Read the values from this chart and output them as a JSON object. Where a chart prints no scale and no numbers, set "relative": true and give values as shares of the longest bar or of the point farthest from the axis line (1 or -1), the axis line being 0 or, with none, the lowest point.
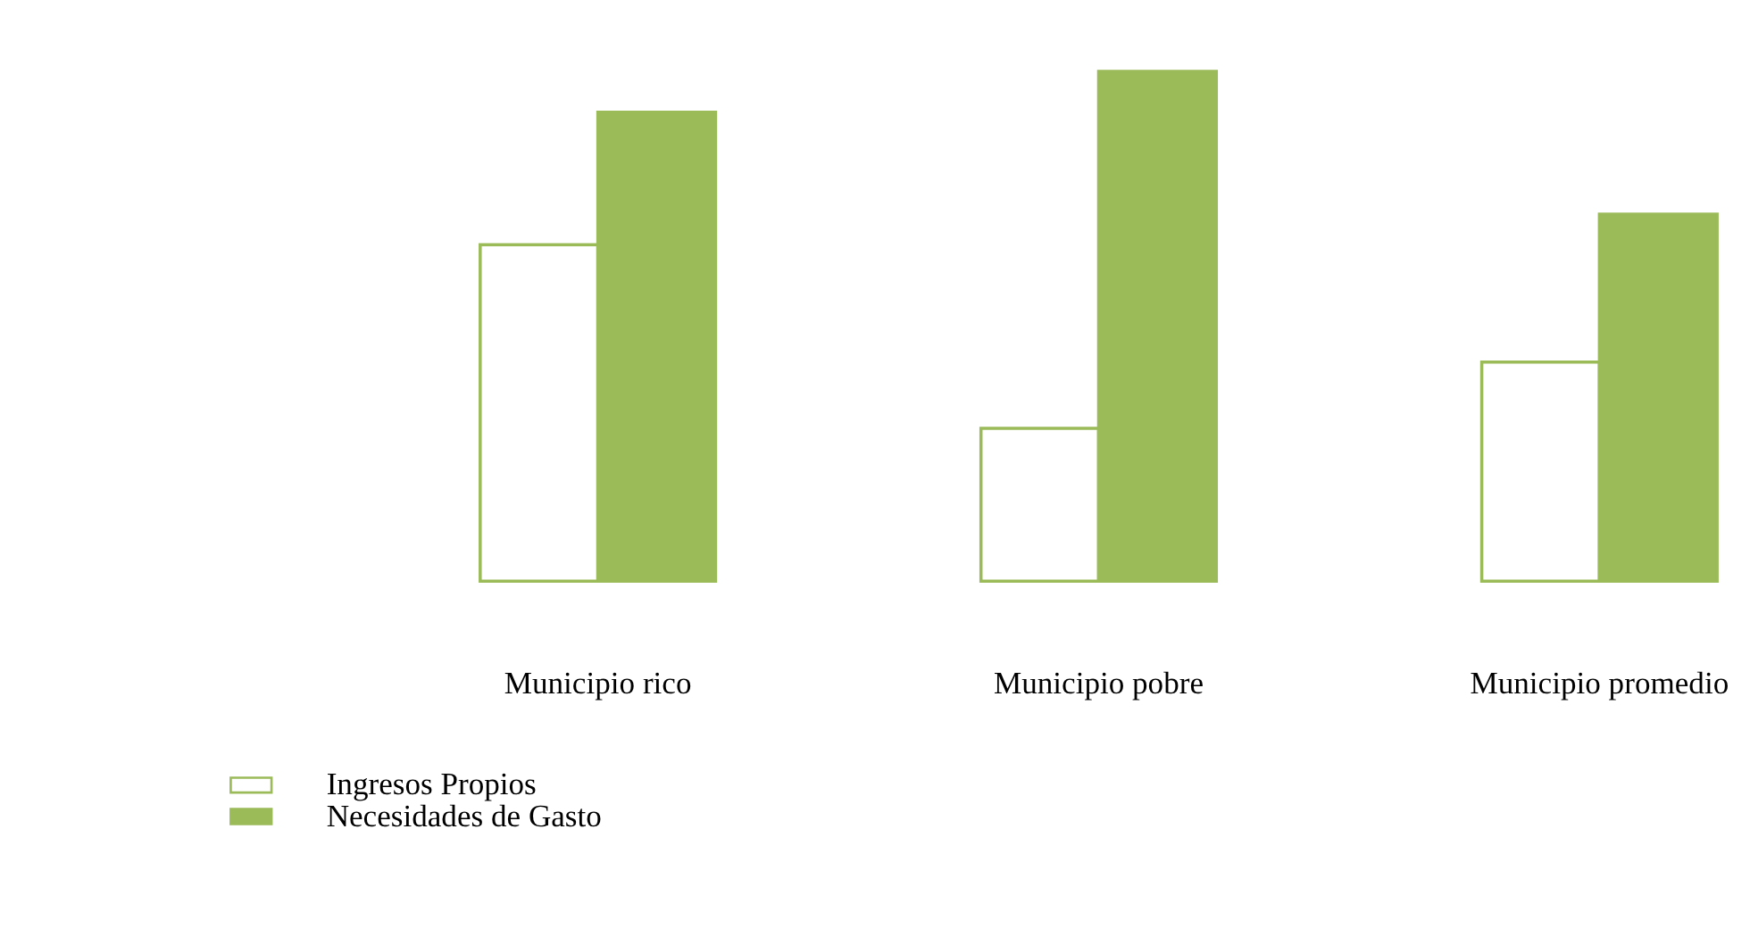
{
  "chart_data": {
    "type": "bar",
    "relative": true,
    "categories": [
      "Municipio rico",
      "Municipio pobre",
      "Municipio promedio"
    ],
    "series": [
      {
        "name": "Ingresos Propios",
        "color": "#ffffff",
        "values": [
          0.66,
          0.3,
          0.43
        ]
      },
      {
        "name": "Necesidades de Gasto",
        "color": "#9bbb59",
        "values": [
          0.92,
          1.0,
          0.72
        ]
      }
    ],
    "legend": "bottom left",
    "grid": false
  }
}
